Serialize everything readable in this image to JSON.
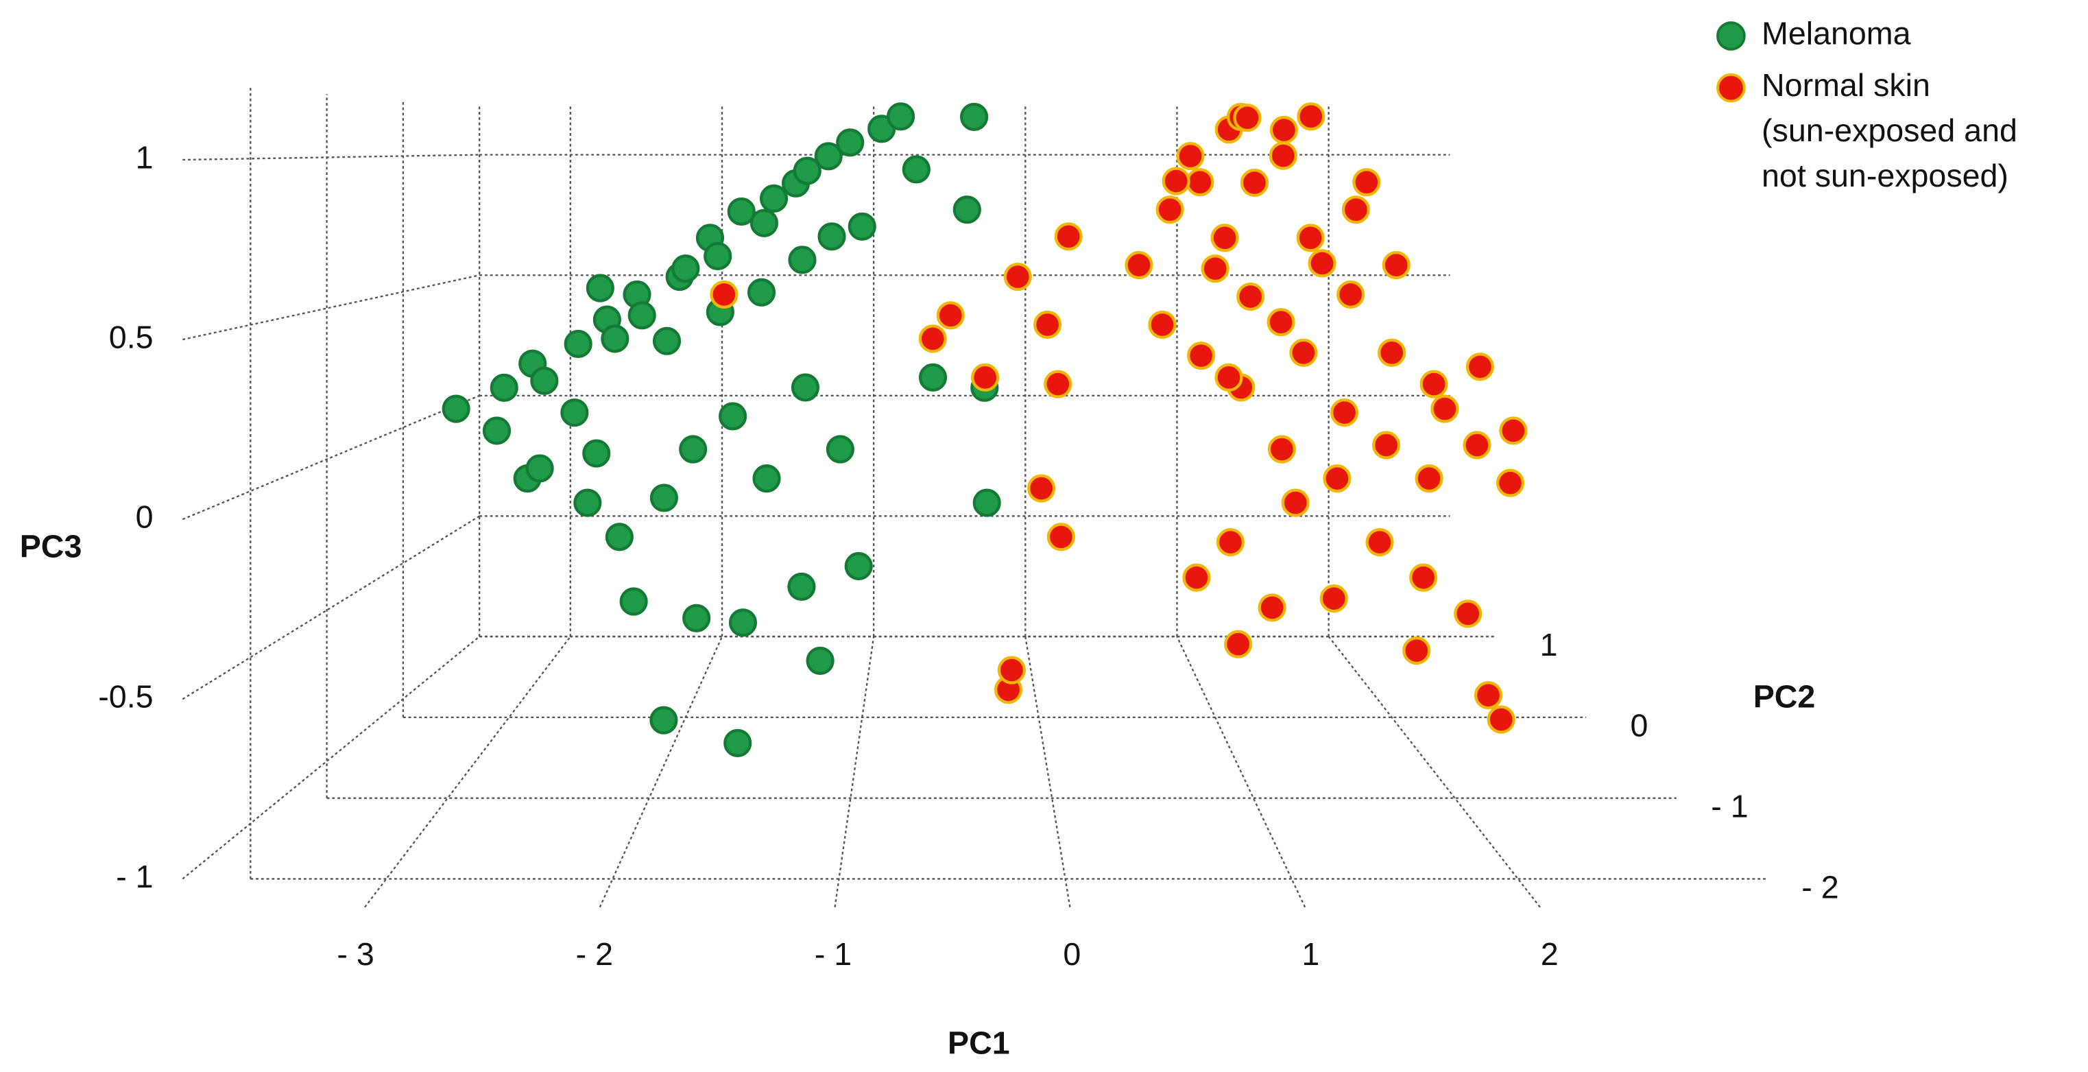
{
  "chart_data": {
    "type": "scatter3d",
    "xlabel": "PC1",
    "ylabel": "PC2",
    "zlabel": "PC3",
    "xlim": [
      -3.6,
      2.8
    ],
    "ylim": [
      -2,
      1
    ],
    "zlim": [
      -1,
      1.2
    ],
    "xticks": [
      {
        "value": -3,
        "label": "- 3"
      },
      {
        "value": -2,
        "label": "- 2"
      },
      {
        "value": -1,
        "label": "- 1"
      },
      0,
      1,
      2
    ],
    "yticks": [
      {
        "value": -2,
        "label": "- 2"
      },
      {
        "value": -1,
        "label": "- 1"
      },
      0,
      1
    ],
    "zticks": [
      {
        "value": -1,
        "label": "- 1"
      },
      -0.5,
      0,
      0.5,
      1
    ],
    "grid": true,
    "legend": "top-right",
    "series": [
      {
        "name": "Melanoma",
        "color": "#1f9a48",
        "edgecolor": "#157a36",
        "x": [
          -3.3,
          -3.1,
          -3.0,
          -2.9,
          -2.8,
          -2.7,
          -2.6,
          -2.5,
          -2.4,
          -2.3,
          -2.2,
          -2.1,
          -2.0,
          -1.9,
          -1.8,
          -1.7,
          -1.6,
          -1.5,
          -1.4,
          -1.3,
          -1.2,
          -1.1,
          -0.9,
          -0.8,
          -0.7,
          -2.6,
          -2.2,
          -1.9,
          -1.6,
          -1.4,
          -1.2,
          -1.0,
          -2.8,
          -2.5,
          -2.3,
          -2.1,
          -1.9,
          -1.7,
          -1.5,
          -1.3,
          -1.1,
          -2.2,
          -1.9,
          -1.6,
          -1.3,
          -1.0,
          -2.0,
          -1.6,
          -1.2,
          -0.6,
          -0.3,
          -0.3,
          -0.35,
          -0.4,
          -3.0,
          -2.4
        ],
        "y": [
          0,
          0.2,
          -0.2,
          0.1,
          0,
          0.3,
          -0.1,
          0.2,
          0,
          0.1,
          -0.2,
          0.3,
          0,
          0.2,
          -0.1,
          0.1,
          0.3,
          0,
          0.2,
          -0.1,
          0.1,
          0.4,
          0.2,
          0.5,
          0.3,
          0.4,
          0.4,
          0.5,
          0.2,
          0.5,
          0.3,
          0,
          -0.3,
          -0.2,
          -0.3,
          -0.1,
          -0.3,
          -0.2,
          -0.3,
          -0.2,
          -0.3,
          -0.4,
          -0.2,
          -0.5,
          -0.4,
          -0.3,
          -0.6,
          -0.7,
          -0.4,
          0.1,
          0.2,
          -0.2,
          0.6,
          0.3,
          0.5,
          -0.4
        ],
        "z": [
          0.1,
          0.15,
          0.05,
          0.25,
          0.2,
          0.3,
          0.1,
          0.4,
          0.35,
          0.5,
          0.45,
          0.55,
          0.6,
          0.7,
          0.65,
          0.8,
          0.75,
          0.85,
          0.9,
          0.95,
          1.0,
          1.05,
          1.1,
          1.15,
          0.95,
          0.5,
          0.3,
          0.4,
          0.5,
          0.6,
          0.7,
          0.75,
          -0.1,
          -0.2,
          -0.3,
          -0.2,
          0.0,
          0.1,
          -0.1,
          0.2,
          0.0,
          -0.5,
          -0.6,
          -0.55,
          -0.45,
          -0.4,
          -0.85,
          -0.9,
          -0.7,
          0.2,
          0.15,
          -0.2,
          1.15,
          0.8,
          -0.2,
          0.0
        ]
      },
      {
        "name": "Normal skin (sun-exposed and not sun-exposed)",
        "color": "#e8170e",
        "edgecolor": "#f2b705",
        "x": [
          -0.6,
          -0.3,
          -0.5,
          -0.1,
          0.05,
          0.1,
          0.0,
          0.1,
          -0.2,
          -0.2,
          0.2,
          -1.8,
          0.6,
          0.7,
          0.8,
          0.9,
          0.9,
          1.0,
          1.0,
          1.1,
          1.1,
          1.2,
          1.2,
          1.3,
          1.3,
          1.4,
          1.4,
          1.5,
          1.5,
          1.6,
          1.6,
          1.7,
          1.7,
          1.8,
          1.8,
          1.9,
          1.9,
          2.0,
          2.0,
          2.1,
          2.1,
          2.2,
          2.2,
          2.3,
          2.4,
          2.5,
          1.2,
          1.5,
          1.9,
          2.3,
          2.2,
          1.0,
          0.8,
          1.3,
          1.6,
          1.4,
          0.9,
          2.5,
          2.6,
          1.7,
          1.1,
          2.0,
          1.0
        ],
        "y": [
          0,
          0.1,
          -0.2,
          0.3,
          0,
          -0.1,
          -0.2,
          -0.3,
          -0.6,
          -1.0,
          0.3,
          0.1,
          0.2,
          0,
          0.3,
          -0.1,
          0.2,
          0,
          0.4,
          -0.2,
          0.2,
          0.5,
          0,
          -0.3,
          0.3,
          0.1,
          -0.2,
          0.4,
          0,
          -0.3,
          0.2,
          0.5,
          -0.1,
          0.1,
          -0.4,
          0.3,
          -0.2,
          0,
          -0.5,
          0.2,
          -0.3,
          -0.1,
          -0.6,
          0,
          -0.2,
          -0.4,
          -0.5,
          -0.6,
          -0.7,
          -0.8,
          -0.9,
          -0.4,
          -0.5,
          0.6,
          0.7,
          0.8,
          0.6,
          0,
          -0.2,
          0.3,
          0.1,
          0.4,
          -0.6
        ],
        "z": [
          0.35,
          0.2,
          0.45,
          0.55,
          0.4,
          0.2,
          -0.15,
          -0.3,
          -0.75,
          -0.6,
          0.7,
          0.5,
          0.6,
          0.4,
          0.8,
          0.3,
          1.0,
          0.6,
          0.9,
          0.2,
          0.7,
          1.1,
          0.5,
          0.0,
          0.9,
          0.4,
          -0.2,
          1.0,
          0.3,
          -0.1,
          0.7,
          1.15,
          0.1,
          0.5,
          -0.3,
          0.8,
          0.0,
          0.3,
          -0.4,
          0.6,
          -0.1,
          0.2,
          -0.5,
          0.1,
          0.0,
          -0.1,
          -0.5,
          -0.45,
          -0.6,
          -0.8,
          -0.7,
          -0.3,
          -0.4,
          1.15,
          1.1,
          1.15,
          0.9,
          0.25,
          0.05,
          0.6,
          0.2,
          0.9,
          -0.6
        ]
      }
    ]
  }
}
